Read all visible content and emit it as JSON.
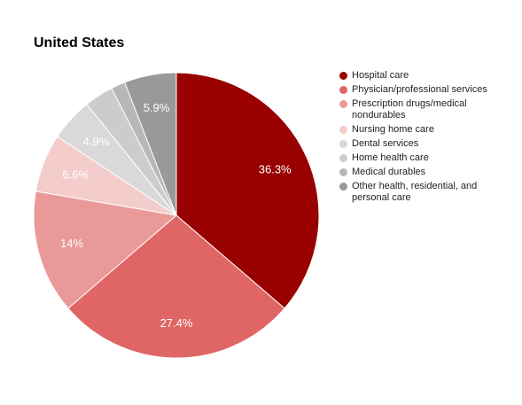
{
  "chart_data": {
    "type": "pie",
    "title": "United States",
    "categories": [
      "Hospital care",
      "Physician/professional services",
      "Prescription drugs/medical nondurables",
      "Nursing home care",
      "Dental services",
      "Home health care",
      "Medical durables",
      "Other health, residential, and personal care"
    ],
    "values": [
      36.3,
      27.4,
      14,
      6.6,
      4.9,
      3.3,
      1.6,
      5.9
    ],
    "value_labels": [
      "36.3%",
      "27.4%",
      "14%",
      "6.6%",
      "4.9%",
      null,
      null,
      "5.9%"
    ],
    "colors": [
      "#990000",
      "#e06666",
      "#ea9999",
      "#f4cccc",
      "#d9d9d9",
      "#cccccc",
      "#b7b7b7",
      "#999999"
    ],
    "legend": "right"
  }
}
